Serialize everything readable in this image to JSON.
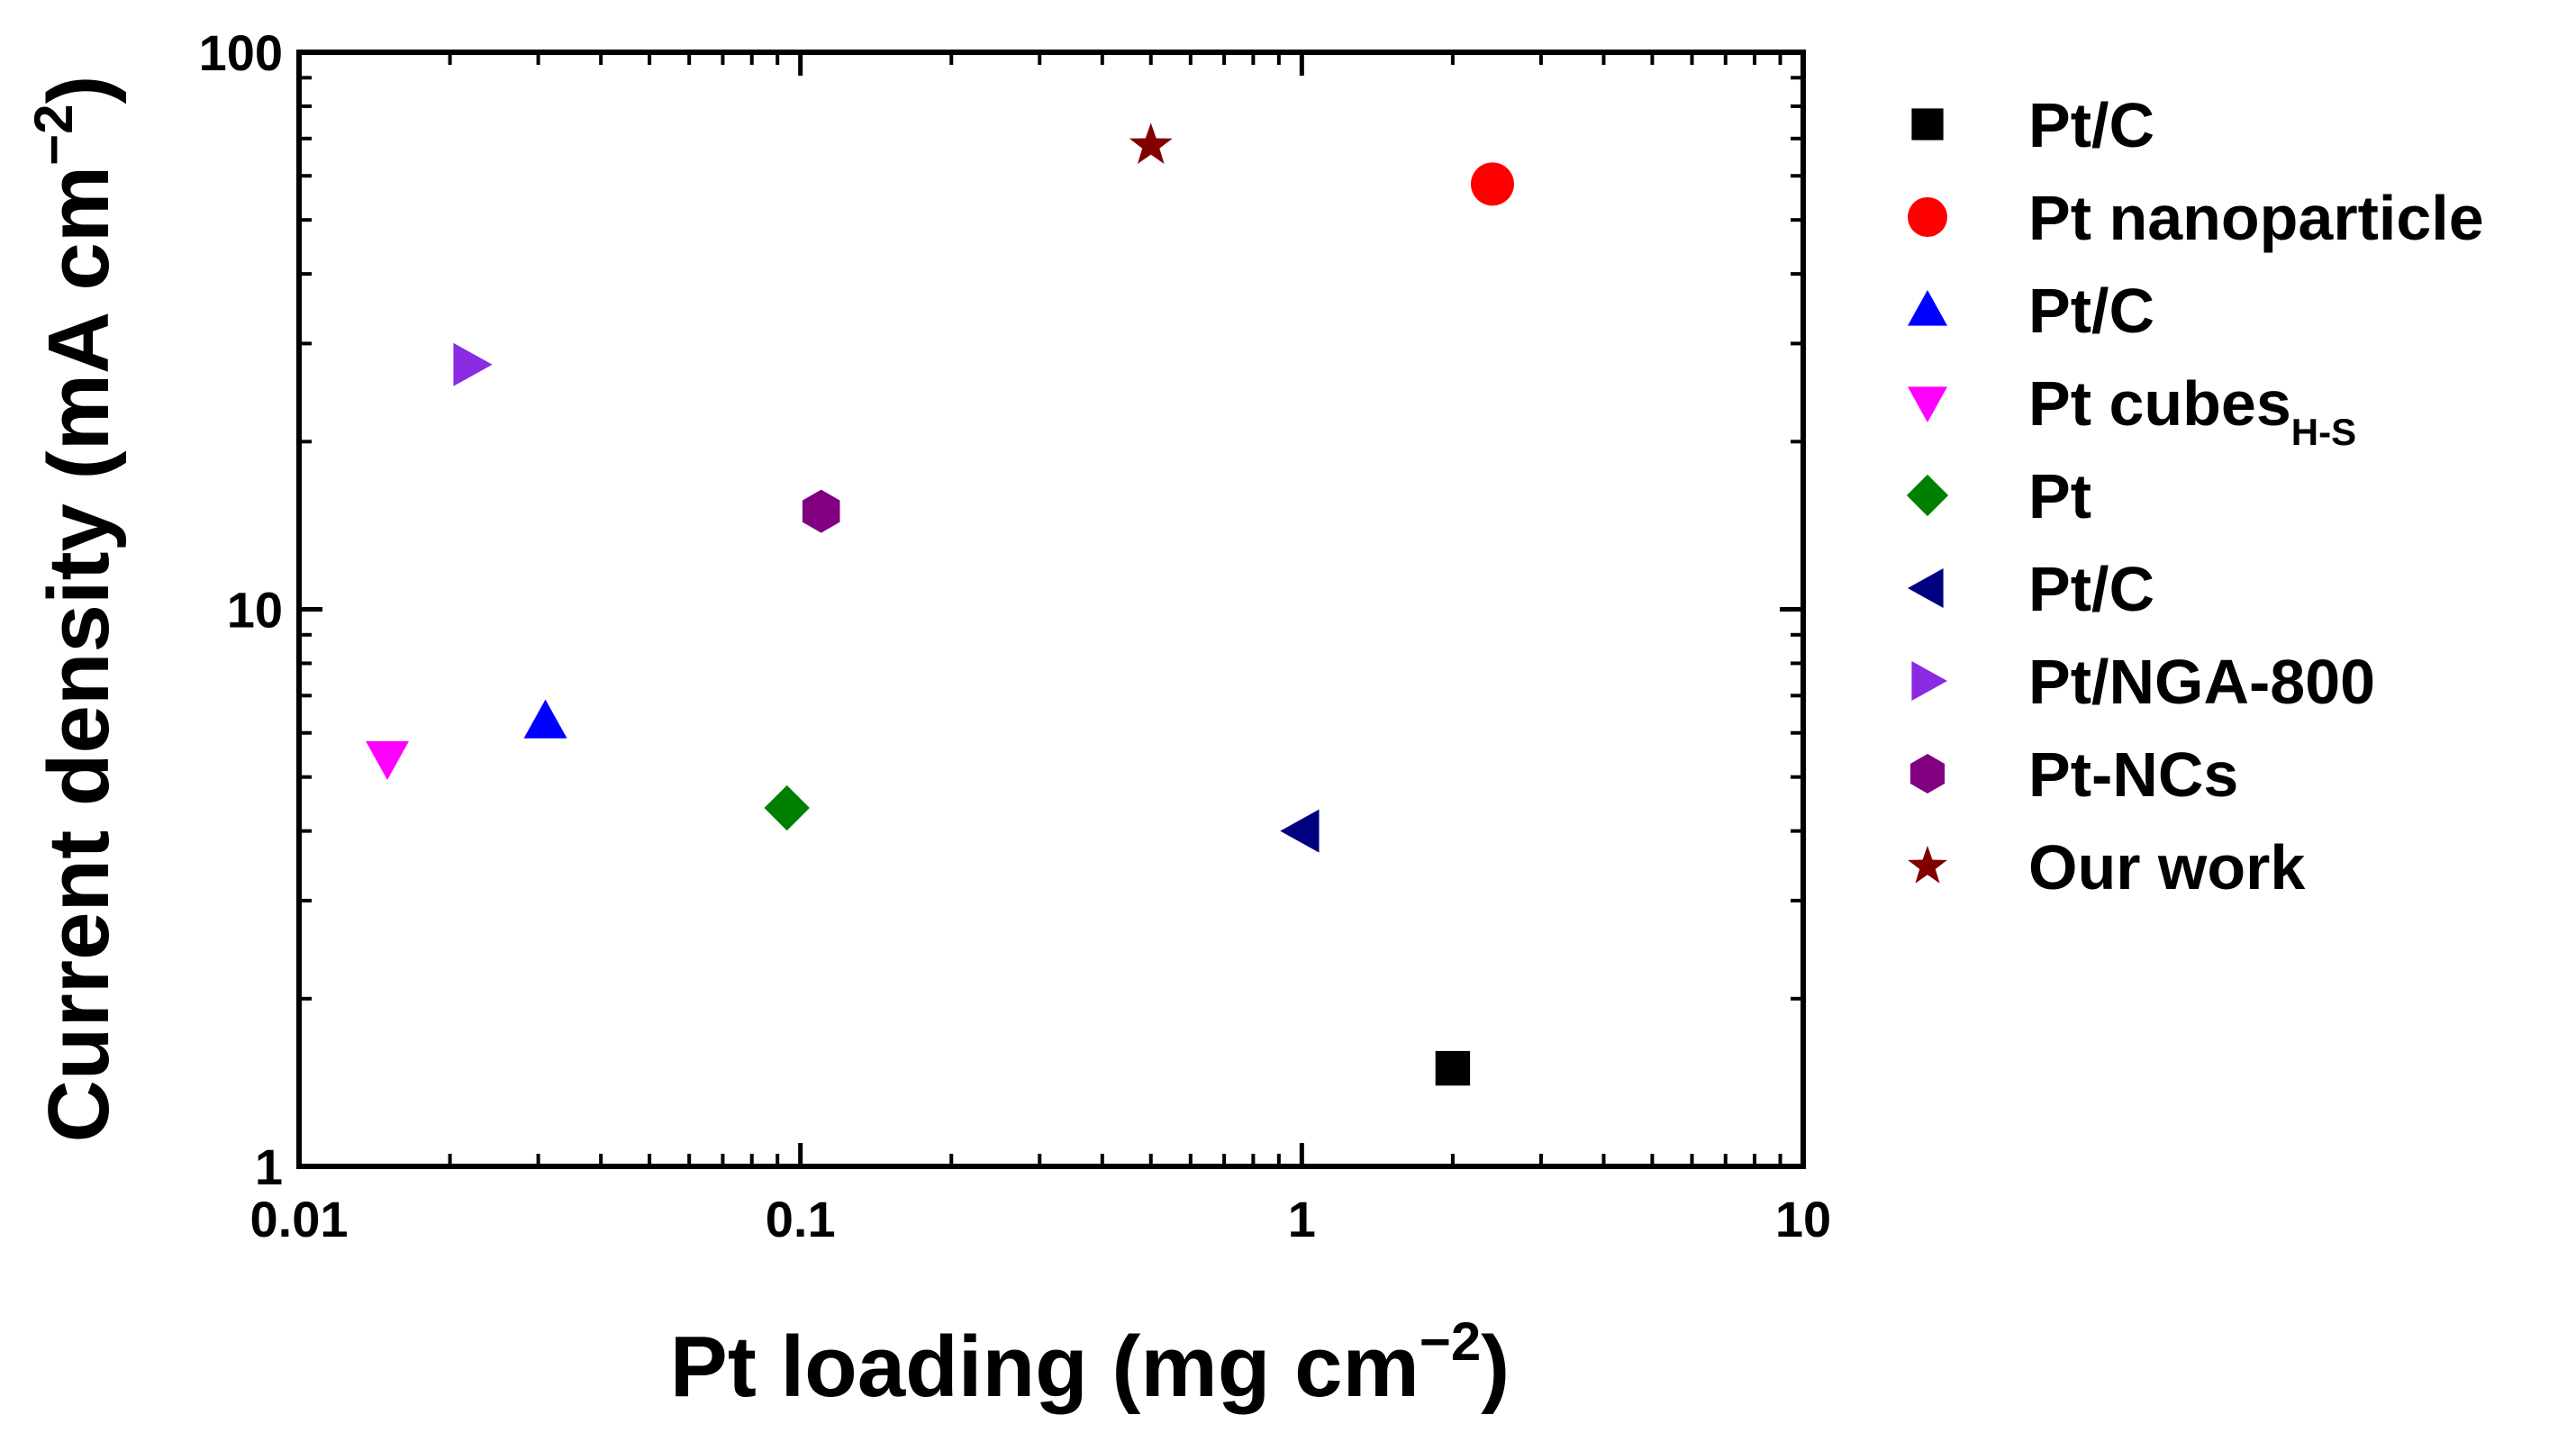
{
  "chart_data": {
    "type": "scatter",
    "title": "",
    "xlabel": {
      "text": "Pt loading (mg cm",
      "sup": "−2",
      "close": ")"
    },
    "ylabel": {
      "text": "Current density (mA cm",
      "sup": "−2",
      "close": ")"
    },
    "xscale": "log",
    "yscale": "log",
    "xlim": [
      0.01,
      10
    ],
    "ylim": [
      1,
      100
    ],
    "xticks": [
      {
        "value": 0.01,
        "label": "0.01"
      },
      {
        "value": 0.1,
        "label": "0.1"
      },
      {
        "value": 1,
        "label": "1"
      },
      {
        "value": 10,
        "label": "10"
      }
    ],
    "yticks": [
      {
        "value": 1,
        "label": "1"
      },
      {
        "value": 10,
        "label": "10"
      },
      {
        "value": 100,
        "label": "100"
      }
    ],
    "grid": false,
    "legend_position": "right",
    "series": [
      {
        "name": "Pt/C",
        "marker": "square",
        "color": "#000000",
        "x": 2.0,
        "y": 1.5
      },
      {
        "name": "Pt nanoparticle",
        "marker": "circle",
        "color": "#ff0000",
        "x": 2.4,
        "y": 58
      },
      {
        "name": "Pt/C",
        "marker": "triangle-up",
        "color": "#0000ff",
        "x": 0.031,
        "y": 6.3
      },
      {
        "name": "Pt cubes",
        "subscript": "H-S",
        "marker": "triangle-down",
        "color": "#ff00ff",
        "x": 0.015,
        "y": 5.4
      },
      {
        "name": "Pt",
        "marker": "diamond",
        "color": "#008000",
        "x": 0.094,
        "y": 4.4
      },
      {
        "name": "Pt/C",
        "marker": "triangle-left",
        "color": "#000080",
        "x": 1.0,
        "y": 4.0
      },
      {
        "name": "Pt/NGA-800",
        "marker": "triangle-right",
        "color": "#8a2be2",
        "x": 0.022,
        "y": 27.5
      },
      {
        "name": "Pt-NCs",
        "marker": "hexagon",
        "color": "#800080",
        "x": 0.11,
        "y": 15
      },
      {
        "name": "Our work",
        "marker": "star",
        "color": "#800000",
        "x": 0.5,
        "y": 68
      }
    ]
  }
}
